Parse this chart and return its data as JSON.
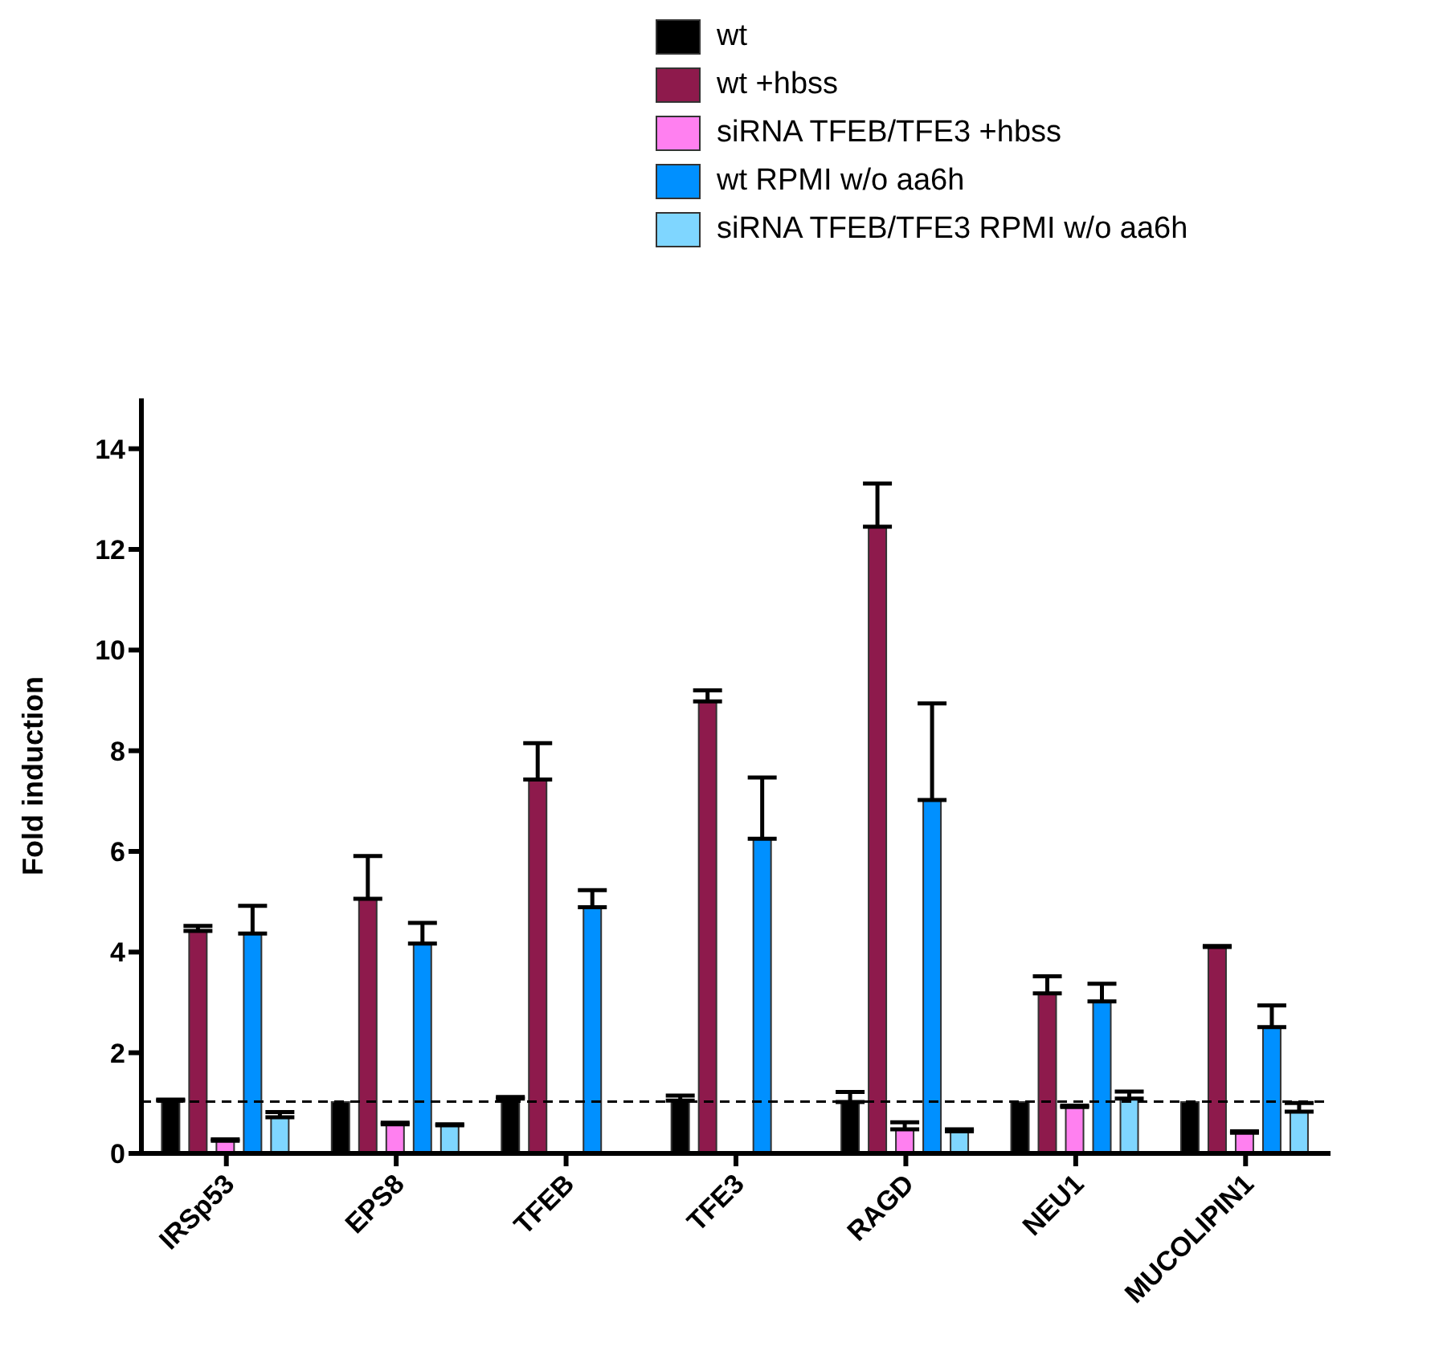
{
  "chart_data": {
    "type": "bar",
    "ylabel": "Fold induction",
    "categories": [
      "IRSp53",
      "EPS8",
      "TFEB",
      "TFE3",
      "RAGD",
      "NEU1",
      "MUCOLIPIN1"
    ],
    "series": [
      {
        "name": "wt",
        "color": "#000000",
        "values": [
          1.05,
          1.02,
          1.09,
          1.05,
          1.02,
          1.02,
          1.02
        ],
        "errors": [
          [
            1.05,
            1.07
          ],
          null,
          [
            1.09,
            1.12
          ],
          [
            1.05,
            1.15
          ],
          [
            1.02,
            1.22
          ],
          null,
          null
        ]
      },
      {
        "name": "wt +hbss",
        "color": "#8e1a4c",
        "values": [
          4.42,
          5.06,
          7.43,
          8.98,
          12.45,
          3.18,
          4.1
        ],
        "errors": [
          [
            4.42,
            4.52
          ],
          [
            5.06,
            5.91
          ],
          [
            7.43,
            8.15
          ],
          [
            8.98,
            9.2
          ],
          [
            12.45,
            13.31
          ],
          [
            3.18,
            3.52
          ],
          [
            4.1,
            4.12
          ]
        ]
      },
      {
        "name": "siRNA TFEB/TFE3 +hbss",
        "color": "#ff80f0",
        "values": [
          0.25,
          0.58,
          0,
          0,
          0.48,
          0.92,
          0.41
        ],
        "errors": [
          [
            0.25,
            0.28
          ],
          [
            0.58,
            0.61
          ],
          null,
          null,
          [
            0.48,
            0.62
          ],
          [
            0.92,
            0.95
          ],
          [
            0.41,
            0.44
          ]
        ]
      },
      {
        "name": "wt RPMI w/o aa6h",
        "color": "#0090ff",
        "values": [
          4.37,
          4.17,
          4.89,
          6.25,
          7.02,
          3.02,
          2.51
        ],
        "errors": [
          [
            4.37,
            4.92
          ],
          [
            4.17,
            4.58
          ],
          [
            4.89,
            5.23
          ],
          [
            6.25,
            7.47
          ],
          [
            7.02,
            8.94
          ],
          [
            3.02,
            3.37
          ],
          [
            2.51,
            2.94
          ]
        ]
      },
      {
        "name": "siRNA TFEB/TFE3 RPMI w/o aa6h",
        "color": "#7fd6ff",
        "values": [
          0.72,
          0.56,
          0,
          0,
          0.44,
          1.09,
          0.83
        ],
        "errors": [
          [
            0.72,
            0.82
          ],
          [
            0.56,
            0.58
          ],
          null,
          null,
          [
            0.44,
            0.48
          ],
          [
            1.09,
            1.23
          ],
          [
            0.83,
            1.0
          ]
        ]
      }
    ],
    "ylim": [
      0,
      15
    ],
    "yticks": [
      0,
      2,
      4,
      6,
      8,
      10,
      12,
      14
    ],
    "ref_lines": [
      {
        "axis": "y",
        "value": 1.03,
        "line_style": "dashed"
      }
    ],
    "legend": "top right",
    "grid": false
  }
}
